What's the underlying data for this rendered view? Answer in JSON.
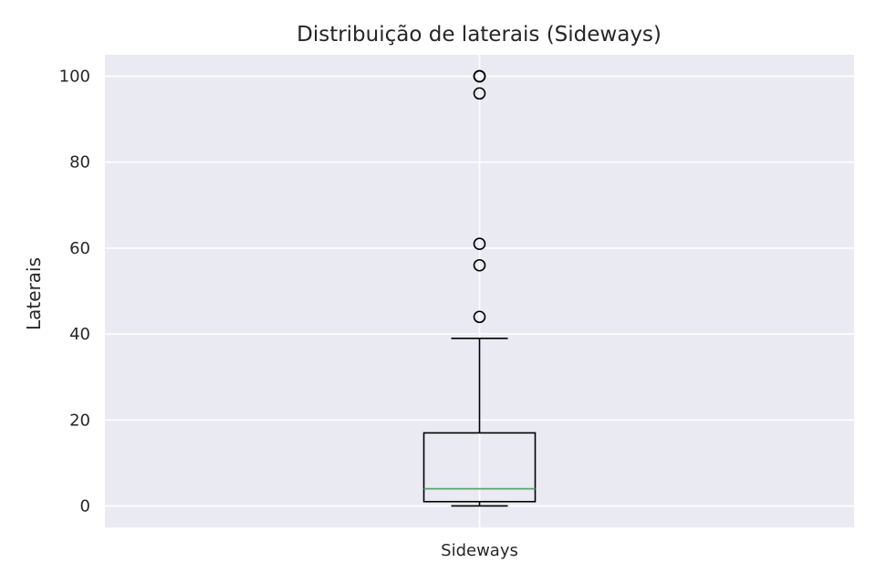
{
  "chart_data": {
    "type": "box",
    "title": "Distribuição de laterais (Sideways)",
    "xlabel": "",
    "ylabel": "Laterais",
    "categories": [
      "Sideways"
    ],
    "y_ticks": [
      0,
      20,
      40,
      60,
      80,
      100
    ],
    "ylim": [
      -5,
      105
    ],
    "grid": true,
    "box": {
      "whisker_low": 0,
      "q1": 1,
      "median": 4,
      "q3": 17,
      "whisker_high": 39,
      "outliers": [
        44,
        56,
        61,
        96,
        100,
        100,
        100
      ]
    },
    "colors": {
      "background": "#eaeaf2",
      "grid": "#ffffff",
      "box": "#000000",
      "median": "#55a868"
    }
  }
}
